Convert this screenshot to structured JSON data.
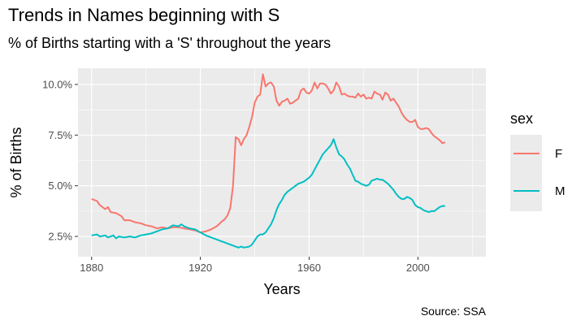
{
  "chart_data": {
    "type": "line",
    "title": "Trends in Names beginning with S",
    "subtitle": "% of Births starting with a 'S' throughout the years",
    "xlabel": "Years",
    "ylabel": "% of Births",
    "caption": "Source: SSA",
    "xlim": [
      1875,
      2025
    ],
    "ylim": [
      1.5,
      10.8
    ],
    "x_ticks": [
      1880,
      1920,
      1960,
      2000
    ],
    "y_ticks": [
      {
        "value": 2.5,
        "label": "2.5%"
      },
      {
        "value": 5.0,
        "label": "5.0%"
      },
      {
        "value": 7.5,
        "label": "7.5%"
      },
      {
        "value": 10.0,
        "label": "10.0%"
      }
    ],
    "grid": true,
    "legend": {
      "title": "sex",
      "position": "right"
    },
    "series": [
      {
        "name": "F",
        "color": "#F8766D",
        "points": [
          [
            1880,
            4.35
          ],
          [
            1882,
            4.25
          ],
          [
            1883,
            4.05
          ],
          [
            1885,
            3.85
          ],
          [
            1886,
            3.95
          ],
          [
            1887,
            3.7
          ],
          [
            1889,
            3.65
          ],
          [
            1891,
            3.5
          ],
          [
            1892,
            3.3
          ],
          [
            1894,
            3.3
          ],
          [
            1896,
            3.2
          ],
          [
            1898,
            3.15
          ],
          [
            1900,
            3.05
          ],
          [
            1902,
            3.0
          ],
          [
            1904,
            2.9
          ],
          [
            1906,
            2.95
          ],
          [
            1908,
            2.9
          ],
          [
            1910,
            2.95
          ],
          [
            1912,
            2.95
          ],
          [
            1914,
            2.9
          ],
          [
            1916,
            2.85
          ],
          [
            1918,
            2.8
          ],
          [
            1920,
            2.7
          ],
          [
            1922,
            2.75
          ],
          [
            1924,
            2.85
          ],
          [
            1926,
            3.0
          ],
          [
            1928,
            3.25
          ],
          [
            1929,
            3.35
          ],
          [
            1930,
            3.55
          ],
          [
            1931,
            3.9
          ],
          [
            1932,
            5.0
          ],
          [
            1933,
            7.4
          ],
          [
            1934,
            7.3
          ],
          [
            1935,
            7.0
          ],
          [
            1936,
            7.3
          ],
          [
            1937,
            7.5
          ],
          [
            1938,
            7.9
          ],
          [
            1939,
            8.4
          ],
          [
            1940,
            9.1
          ],
          [
            1941,
            9.4
          ],
          [
            1942,
            9.5
          ],
          [
            1943,
            10.5
          ],
          [
            1944,
            9.9
          ],
          [
            1945,
            10.05
          ],
          [
            1946,
            10.1
          ],
          [
            1947,
            9.9
          ],
          [
            1948,
            9.2
          ],
          [
            1949,
            8.95
          ],
          [
            1950,
            9.15
          ],
          [
            1951,
            9.2
          ],
          [
            1952,
            9.3
          ],
          [
            1953,
            9.05
          ],
          [
            1954,
            9.1
          ],
          [
            1955,
            9.2
          ],
          [
            1956,
            9.3
          ],
          [
            1957,
            9.7
          ],
          [
            1958,
            9.8
          ],
          [
            1959,
            9.6
          ],
          [
            1960,
            9.55
          ],
          [
            1961,
            9.7
          ],
          [
            1962,
            10.1
          ],
          [
            1963,
            9.8
          ],
          [
            1964,
            10.05
          ],
          [
            1965,
            10.05
          ],
          [
            1966,
            10.0
          ],
          [
            1967,
            9.8
          ],
          [
            1968,
            9.55
          ],
          [
            1969,
            9.7
          ],
          [
            1970,
            10.1
          ],
          [
            1971,
            9.9
          ],
          [
            1972,
            9.5
          ],
          [
            1973,
            9.55
          ],
          [
            1974,
            9.45
          ],
          [
            1975,
            9.4
          ],
          [
            1976,
            9.4
          ],
          [
            1977,
            9.35
          ],
          [
            1978,
            9.55
          ],
          [
            1979,
            9.4
          ],
          [
            1980,
            9.5
          ],
          [
            1981,
            9.3
          ],
          [
            1982,
            9.35
          ],
          [
            1983,
            9.3
          ],
          [
            1984,
            9.65
          ],
          [
            1985,
            9.55
          ],
          [
            1986,
            9.5
          ],
          [
            1987,
            9.25
          ],
          [
            1988,
            9.6
          ],
          [
            1989,
            9.5
          ],
          [
            1990,
            9.2
          ],
          [
            1991,
            9.3
          ],
          [
            1992,
            9.1
          ],
          [
            1993,
            8.9
          ],
          [
            1994,
            8.6
          ],
          [
            1995,
            8.4
          ],
          [
            1996,
            8.25
          ],
          [
            1997,
            8.15
          ],
          [
            1998,
            8.15
          ],
          [
            1999,
            8.25
          ],
          [
            2000,
            7.9
          ],
          [
            2001,
            7.8
          ],
          [
            2002,
            7.8
          ],
          [
            2003,
            7.85
          ],
          [
            2004,
            7.8
          ],
          [
            2005,
            7.6
          ],
          [
            2006,
            7.45
          ],
          [
            2007,
            7.35
          ],
          [
            2008,
            7.25
          ],
          [
            2009,
            7.1
          ],
          [
            2010,
            7.15
          ]
        ]
      },
      {
        "name": "M",
        "color": "#00BFC4",
        "points": [
          [
            1880,
            2.55
          ],
          [
            1882,
            2.6
          ],
          [
            1883,
            2.5
          ],
          [
            1885,
            2.55
          ],
          [
            1886,
            2.45
          ],
          [
            1888,
            2.55
          ],
          [
            1889,
            2.4
          ],
          [
            1890,
            2.5
          ],
          [
            1892,
            2.45
          ],
          [
            1894,
            2.5
          ],
          [
            1896,
            2.45
          ],
          [
            1898,
            2.55
          ],
          [
            1900,
            2.6
          ],
          [
            1902,
            2.65
          ],
          [
            1904,
            2.75
          ],
          [
            1906,
            2.85
          ],
          [
            1908,
            2.9
          ],
          [
            1910,
            3.05
          ],
          [
            1912,
            3.0
          ],
          [
            1913,
            3.1
          ],
          [
            1914,
            3.0
          ],
          [
            1916,
            2.9
          ],
          [
            1918,
            2.85
          ],
          [
            1920,
            2.7
          ],
          [
            1922,
            2.55
          ],
          [
            1924,
            2.45
          ],
          [
            1926,
            2.35
          ],
          [
            1928,
            2.25
          ],
          [
            1930,
            2.15
          ],
          [
            1932,
            2.05
          ],
          [
            1934,
            1.95
          ],
          [
            1935,
            2.0
          ],
          [
            1936,
            1.95
          ],
          [
            1938,
            2.0
          ],
          [
            1939,
            2.1
          ],
          [
            1940,
            2.3
          ],
          [
            1941,
            2.5
          ],
          [
            1942,
            2.6
          ],
          [
            1943,
            2.6
          ],
          [
            1944,
            2.7
          ],
          [
            1945,
            2.9
          ],
          [
            1946,
            3.1
          ],
          [
            1947,
            3.4
          ],
          [
            1948,
            3.8
          ],
          [
            1949,
            4.1
          ],
          [
            1950,
            4.3
          ],
          [
            1951,
            4.55
          ],
          [
            1952,
            4.7
          ],
          [
            1953,
            4.8
          ],
          [
            1954,
            4.9
          ],
          [
            1955,
            5.0
          ],
          [
            1956,
            5.1
          ],
          [
            1957,
            5.15
          ],
          [
            1958,
            5.2
          ],
          [
            1959,
            5.3
          ],
          [
            1960,
            5.4
          ],
          [
            1961,
            5.55
          ],
          [
            1962,
            5.8
          ],
          [
            1963,
            6.05
          ],
          [
            1964,
            6.3
          ],
          [
            1965,
            6.55
          ],
          [
            1966,
            6.7
          ],
          [
            1967,
            6.85
          ],
          [
            1968,
            7.0
          ],
          [
            1969,
            7.3
          ],
          [
            1970,
            6.9
          ],
          [
            1971,
            6.55
          ],
          [
            1972,
            6.45
          ],
          [
            1973,
            6.3
          ],
          [
            1974,
            6.05
          ],
          [
            1975,
            5.85
          ],
          [
            1976,
            5.55
          ],
          [
            1977,
            5.25
          ],
          [
            1978,
            5.2
          ],
          [
            1979,
            5.1
          ],
          [
            1980,
            5.05
          ],
          [
            1981,
            5.0
          ],
          [
            1982,
            5.05
          ],
          [
            1983,
            5.25
          ],
          [
            1984,
            5.3
          ],
          [
            1985,
            5.35
          ],
          [
            1986,
            5.3
          ],
          [
            1987,
            5.3
          ],
          [
            1988,
            5.2
          ],
          [
            1989,
            5.1
          ],
          [
            1990,
            4.95
          ],
          [
            1991,
            4.8
          ],
          [
            1992,
            4.6
          ],
          [
            1993,
            4.45
          ],
          [
            1994,
            4.35
          ],
          [
            1995,
            4.35
          ],
          [
            1996,
            4.45
          ],
          [
            1997,
            4.4
          ],
          [
            1998,
            4.3
          ],
          [
            1999,
            4.05
          ],
          [
            2000,
            3.95
          ],
          [
            2001,
            3.9
          ],
          [
            2002,
            3.8
          ],
          [
            2003,
            3.75
          ],
          [
            2004,
            3.7
          ],
          [
            2005,
            3.75
          ],
          [
            2006,
            3.75
          ],
          [
            2007,
            3.85
          ],
          [
            2008,
            3.95
          ],
          [
            2009,
            4.0
          ],
          [
            2010,
            4.0
          ]
        ]
      }
    ]
  }
}
